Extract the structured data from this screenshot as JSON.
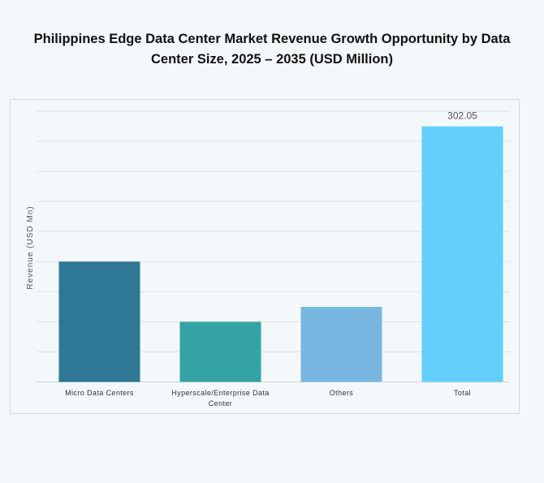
{
  "title_line1": "Philippines Edge Data Center Market Revenue Growth Opportunity by Data",
  "title_line2": "Center Size, 2025 – 2035 (USD Million)",
  "chart_data": {
    "type": "bar",
    "title": "Philippines Edge Data Center Market Revenue Growth Opportunity by Data Center Size, 2025 – 2035 (USD Million)",
    "ylabel": "Revenue (USD Mn)",
    "xlabel": "",
    "categories": [
      "Micro Data Centers",
      "Hyperscale/Enterprise Data Center",
      "Others",
      "Total"
    ],
    "values": [
      142.2,
      71.1,
      88.75,
      302.05
    ],
    "data_labels": [
      "",
      "",
      "",
      "302.05"
    ],
    "colors": [
      "#2e7896",
      "#34a3a3",
      "#78b5e1",
      "#62cffc"
    ],
    "ylim": [
      0,
      320
    ],
    "grid": true,
    "y_tick_labels_shown": false
  }
}
